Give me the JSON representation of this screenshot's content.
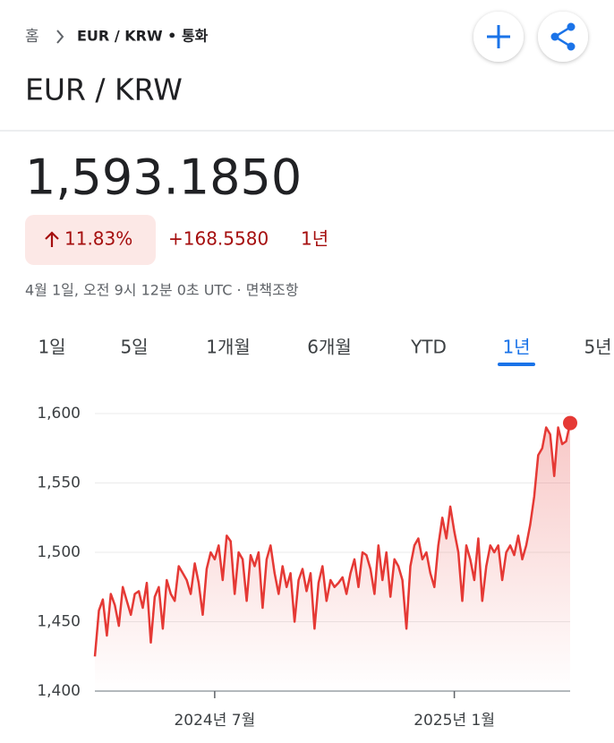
{
  "header": {
    "breadcrumb_home": "홈",
    "breadcrumb_current": "EUR / KRW • 통화",
    "title": "EUR / KRW"
  },
  "quote": {
    "price": "1,593.1850",
    "change_pct": "11.83%",
    "change_abs": "+168.5580",
    "period": "1년",
    "timestamp": "4월 1일, 오전 9시 12분 0초 UTC · 면책조항"
  },
  "tabs": {
    "items": [
      "1일",
      "5일",
      "1개월",
      "6개월",
      "YTD",
      "1년",
      "5년"
    ],
    "active": 5
  },
  "chart_data": {
    "type": "line",
    "color": "#e53935",
    "grid": true,
    "ylim": [
      1400,
      1600
    ],
    "yticks": [
      {
        "value": 1400,
        "label": "1,400"
      },
      {
        "value": 1450,
        "label": "1,450"
      },
      {
        "value": 1500,
        "label": "1,500"
      },
      {
        "value": 1550,
        "label": "1,550"
      },
      {
        "value": 1600,
        "label": "1,600"
      }
    ],
    "categories": [
      null,
      null,
      null,
      null,
      null,
      null,
      null,
      null,
      null,
      null,
      null,
      null,
      null,
      null,
      null,
      null,
      null,
      null,
      null,
      null,
      null,
      null,
      null,
      null,
      null,
      null,
      null,
      null,
      null,
      null,
      "2024년 7월",
      null,
      null,
      null,
      null,
      null,
      null,
      null,
      null,
      null,
      null,
      null,
      null,
      null,
      null,
      null,
      null,
      null,
      null,
      null,
      null,
      null,
      null,
      null,
      null,
      null,
      null,
      null,
      null,
      null,
      null,
      null,
      null,
      null,
      null,
      null,
      null,
      null,
      null,
      null,
      null,
      null,
      null,
      null,
      null,
      null,
      null,
      null,
      null,
      null,
      null,
      null,
      null,
      null,
      null,
      null,
      null,
      null,
      null,
      null,
      "2025년 1월",
      null,
      null,
      null,
      null,
      null,
      null,
      null,
      null,
      null,
      null,
      null,
      null,
      null,
      null,
      null,
      null,
      null,
      null,
      null,
      null,
      null,
      null,
      null,
      null,
      null,
      null,
      null,
      null,
      null
    ],
    "values": [
      1425,
      1458,
      1466,
      1440,
      1470,
      1462,
      1447,
      1475,
      1465,
      1455,
      1470,
      1472,
      1460,
      1478,
      1435,
      1468,
      1475,
      1445,
      1480,
      1470,
      1465,
      1490,
      1485,
      1480,
      1470,
      1492,
      1478,
      1455,
      1488,
      1500,
      1495,
      1505,
      1480,
      1512,
      1508,
      1470,
      1500,
      1495,
      1465,
      1498,
      1490,
      1500,
      1460,
      1495,
      1505,
      1485,
      1470,
      1490,
      1475,
      1485,
      1450,
      1480,
      1488,
      1472,
      1485,
      1445,
      1478,
      1490,
      1465,
      1480,
      1475,
      1478,
      1482,
      1470,
      1485,
      1495,
      1475,
      1500,
      1498,
      1488,
      1470,
      1505,
      1480,
      1500,
      1468,
      1495,
      1490,
      1480,
      1445,
      1490,
      1505,
      1510,
      1495,
      1500,
      1485,
      1475,
      1505,
      1525,
      1510,
      1533,
      1515,
      1500,
      1465,
      1505,
      1495,
      1480,
      1510,
      1465,
      1490,
      1505,
      1500,
      1505,
      1480,
      1500,
      1505,
      1498,
      1512,
      1495,
      1505,
      1520,
      1540,
      1570,
      1575,
      1590,
      1585,
      1555,
      1590,
      1578,
      1580,
      1593.185
    ]
  }
}
